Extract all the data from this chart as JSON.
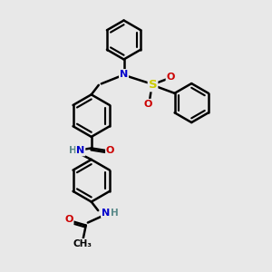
{
  "background_color": "#e8e8e8",
  "line_color": "#000000",
  "bond_width": 1.8,
  "atom_colors": {
    "N": "#0000cc",
    "O": "#cc0000",
    "S": "#cccc00",
    "C": "#000000",
    "H": "#5a8a8a"
  },
  "font_size": 8.0,
  "figsize": [
    3.0,
    3.0
  ],
  "dpi": 100,
  "xlim": [
    0,
    10
  ],
  "ylim": [
    0,
    10
  ]
}
